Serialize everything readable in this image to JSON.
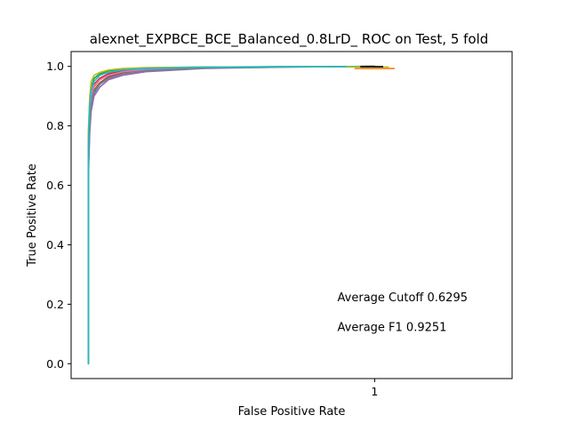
{
  "chart_data": {
    "type": "line",
    "title": "alexnet_EXPBCE_BCE_Balanced_0.8LrD_ ROC on Test, 5 fold",
    "xlabel": "False Positive Rate",
    "ylabel": "True Positive Rate",
    "xlim": [
      -0.06,
      1.48
    ],
    "ylim": [
      -0.05,
      1.05
    ],
    "x_ticks": [
      {
        "value": 1,
        "label": "1"
      }
    ],
    "y_ticks": [
      {
        "value": 0.0,
        "label": "0.0"
      },
      {
        "value": 0.2,
        "label": "0.2"
      },
      {
        "value": 0.4,
        "label": "0.4"
      },
      {
        "value": 0.6,
        "label": "0.6"
      },
      {
        "value": 0.8,
        "label": "0.8"
      },
      {
        "value": 1.0,
        "label": "1.0"
      }
    ],
    "grid": false,
    "series": [
      {
        "color": "#1f77b4",
        "x": [
          0,
          0,
          0.005,
          0.01,
          0.02,
          0.04,
          0.07,
          0.12,
          0.2,
          0.4,
          0.7,
          1.0
        ],
        "y": [
          0,
          0.65,
          0.8,
          0.87,
          0.91,
          0.94,
          0.96,
          0.975,
          0.985,
          0.995,
          0.999,
          1.0
        ]
      },
      {
        "color": "#ff7f0e",
        "x": [
          0,
          0,
          0.005,
          0.01,
          0.02,
          0.04,
          0.07,
          0.12,
          0.2,
          0.4,
          0.7,
          1.0
        ],
        "y": [
          0,
          0.7,
          0.84,
          0.9,
          0.93,
          0.955,
          0.97,
          0.98,
          0.99,
          0.996,
          0.999,
          1.0
        ]
      },
      {
        "color": "#2ca02c",
        "x": [
          0,
          0,
          0.005,
          0.01,
          0.02,
          0.04,
          0.07,
          0.12,
          0.2,
          0.4,
          0.7,
          1.0
        ],
        "y": [
          0,
          0.75,
          0.88,
          0.93,
          0.96,
          0.975,
          0.985,
          0.99,
          0.995,
          0.998,
          0.999,
          1.0
        ]
      },
      {
        "color": "#d62728",
        "x": [
          0,
          0,
          0.005,
          0.01,
          0.02,
          0.04,
          0.07,
          0.12,
          0.2,
          0.4,
          0.7,
          1.0
        ],
        "y": [
          0,
          0.72,
          0.86,
          0.91,
          0.94,
          0.96,
          0.975,
          0.985,
          0.992,
          0.997,
          0.999,
          1.0
        ]
      },
      {
        "color": "#9467bd",
        "x": [
          0,
          0,
          0.005,
          0.01,
          0.02,
          0.04,
          0.07,
          0.12,
          0.2,
          0.4,
          0.7,
          1.0
        ],
        "y": [
          0,
          0.62,
          0.78,
          0.85,
          0.9,
          0.93,
          0.955,
          0.97,
          0.982,
          0.993,
          0.998,
          1.0
        ]
      },
      {
        "color": "#8c564b",
        "x": [
          0,
          0,
          0.005,
          0.01,
          0.02,
          0.04,
          0.07,
          0.12,
          0.2,
          0.4,
          0.7,
          1.0
        ],
        "y": [
          0,
          0.68,
          0.82,
          0.88,
          0.92,
          0.945,
          0.965,
          0.978,
          0.988,
          0.995,
          0.999,
          1.0
        ]
      },
      {
        "color": "#e377c2",
        "x": [
          0,
          0,
          0.005,
          0.01,
          0.02,
          0.04,
          0.07,
          0.12,
          0.2,
          0.4,
          0.7,
          1.0
        ],
        "y": [
          0,
          0.7,
          0.85,
          0.9,
          0.935,
          0.955,
          0.97,
          0.982,
          0.99,
          0.996,
          0.999,
          1.0
        ]
      },
      {
        "color": "#7f7f7f",
        "x": [
          0,
          0,
          0.005,
          0.01,
          0.02,
          0.04,
          0.07,
          0.12,
          0.2,
          0.4,
          0.7,
          1.0
        ],
        "y": [
          0,
          0.66,
          0.81,
          0.87,
          0.915,
          0.94,
          0.96,
          0.975,
          0.986,
          0.994,
          0.998,
          1.0
        ]
      },
      {
        "color": "#bcbd22",
        "x": [
          0,
          0,
          0.005,
          0.01,
          0.02,
          0.04,
          0.07,
          0.12,
          0.2,
          0.4,
          0.7,
          1.0
        ],
        "y": [
          0,
          0.78,
          0.9,
          0.95,
          0.97,
          0.98,
          0.988,
          0.993,
          0.996,
          0.998,
          0.999,
          1.0
        ]
      },
      {
        "color": "#17becf",
        "x": [
          0,
          0,
          0.005,
          0.01,
          0.02,
          0.04,
          0.07,
          0.12,
          0.2,
          0.4,
          0.7,
          1.0
        ],
        "y": [
          0,
          0.74,
          0.87,
          0.92,
          0.95,
          0.97,
          0.98,
          0.988,
          0.993,
          0.997,
          0.999,
          1.0
        ]
      }
    ],
    "end_segments": [
      {
        "color": "#ff7f0e",
        "x": [
          0.93,
          1.07
        ],
        "y": [
          0.993,
          0.993
        ]
      },
      {
        "color": "#bcbd22",
        "x": [
          0.9,
          1.05
        ],
        "y": [
          0.998,
          0.998
        ]
      },
      {
        "color": "#000000",
        "x": [
          0.95,
          1.03
        ],
        "y": [
          0.999,
          0.999
        ]
      }
    ],
    "annotations": [
      {
        "text": "Average Cutoff 0.6295",
        "x": 0.87,
        "y": 0.21
      },
      {
        "text": "Average F1 0.9251",
        "x": 0.87,
        "y": 0.11
      }
    ]
  }
}
